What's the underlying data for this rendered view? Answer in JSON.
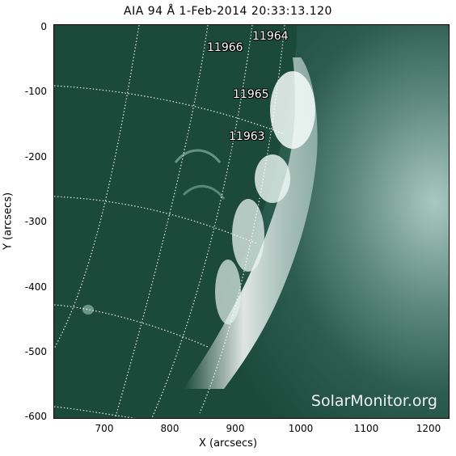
{
  "title": "AIA 94 Å   1-Feb-2014 20:33:13.120",
  "xlabel": "X (arcsecs)",
  "ylabel": "Y (arcsecs)",
  "x_ticks": [
    "700",
    "800",
    "900",
    "1000",
    "1100",
    "1200"
  ],
  "y_ticks": [
    "0",
    "-100",
    "-200",
    "-300",
    "-400",
    "-500",
    "-600"
  ],
  "active_regions": [
    "11964",
    "11966",
    "11965",
    "11963"
  ],
  "watermark": "SolarMonitor.org",
  "colors": {
    "background": "#1b4a3b",
    "limb": "#e7f2ef",
    "grid": "#ffffff"
  }
}
